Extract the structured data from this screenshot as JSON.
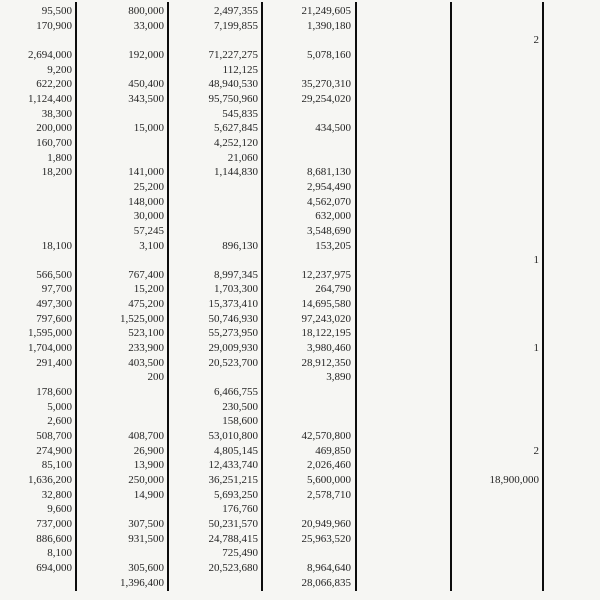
{
  "page": {
    "background_color": "#f6f6f3",
    "text_color": "#242424",
    "rule_color": "#0d0d0d"
  },
  "table": {
    "columns": [
      "column-1",
      "column-2",
      "column-3",
      "column-4",
      "column-5",
      "column-6"
    ],
    "rows": [
      [
        "95,500",
        "800,000",
        "2,497,355",
        "21,249,605",
        "",
        ""
      ],
      [
        "170,900",
        "33,000",
        "7,199,855",
        "1,390,180",
        "",
        ""
      ],
      [
        "",
        "",
        "",
        "",
        "",
        "2"
      ],
      [
        "2,694,000",
        "192,000",
        "71,227,275",
        "5,078,160",
        "",
        ""
      ],
      [
        "9,200",
        "",
        "112,125",
        "",
        "",
        ""
      ],
      [
        "622,200",
        "450,400",
        "48,940,530",
        "35,270,310",
        "",
        ""
      ],
      [
        "1,124,400",
        "343,500",
        "95,750,960",
        "29,254,020",
        "",
        ""
      ],
      [
        "38,300",
        "",
        "545,835",
        "",
        "",
        ""
      ],
      [
        "200,000",
        "15,000",
        "5,627,845",
        "434,500",
        "",
        ""
      ],
      [
        "160,700",
        "",
        "4,252,120",
        "",
        "",
        ""
      ],
      [
        "1,800",
        "",
        "21,060",
        "",
        "",
        ""
      ],
      [
        "18,200",
        "141,000",
        "1,144,830",
        "8,681,130",
        "",
        ""
      ],
      [
        "",
        "25,200",
        "",
        "2,954,490",
        "",
        ""
      ],
      [
        "",
        "148,000",
        "",
        "4,562,070",
        "",
        ""
      ],
      [
        "",
        "30,000",
        "",
        "632,000",
        "",
        ""
      ],
      [
        "",
        "57,245",
        "",
        "3,548,690",
        "",
        ""
      ],
      [
        "18,100",
        "3,100",
        "896,130",
        "153,205",
        "",
        ""
      ],
      [
        "",
        "",
        "",
        "",
        "",
        "1"
      ],
      [
        "566,500",
        "767,400",
        "8,997,345",
        "12,237,975",
        "",
        ""
      ],
      [
        "97,700",
        "15,200",
        "1,703,300",
        "264,790",
        "",
        ""
      ],
      [
        "497,300",
        "475,200",
        "15,373,410",
        "14,695,580",
        "",
        ""
      ],
      [
        "797,600",
        "1,525,000",
        "50,746,930",
        "97,243,020",
        "",
        ""
      ],
      [
        "1,595,000",
        "523,100",
        "55,273,950",
        "18,122,195",
        "",
        ""
      ],
      [
        "1,704,000",
        "233,900",
        "29,009,930",
        "3,980,460",
        "",
        "1"
      ],
      [
        "291,400",
        "403,500",
        "20,523,700",
        "28,912,350",
        "",
        ""
      ],
      [
        "",
        "200",
        "",
        "3,890",
        "",
        ""
      ],
      [
        "178,600",
        "",
        "6,466,755",
        "",
        "",
        ""
      ],
      [
        "5,000",
        "",
        "230,500",
        "",
        "",
        ""
      ],
      [
        "2,600",
        "",
        "158,600",
        "",
        "",
        ""
      ],
      [
        "508,700",
        "408,700",
        "53,010,800",
        "42,570,800",
        "",
        ""
      ],
      [
        "274,900",
        "26,900",
        "4,805,145",
        "469,850",
        "",
        "2"
      ],
      [
        "85,100",
        "13,900",
        "12,433,740",
        "2,026,460",
        "",
        ""
      ],
      [
        "1,636,200",
        "250,000",
        "36,251,215",
        "5,600,000",
        "",
        "18,900,000"
      ],
      [
        "32,800",
        "14,900",
        "5,693,250",
        "2,578,710",
        "",
        ""
      ],
      [
        "9,600",
        "",
        "176,760",
        "",
        "",
        ""
      ],
      [
        "737,000",
        "307,500",
        "50,231,570",
        "20,949,960",
        "",
        ""
      ],
      [
        "886,600",
        "931,500",
        "24,788,415",
        "25,963,520",
        "",
        ""
      ],
      [
        "8,100",
        "",
        "725,490",
        "",
        "",
        ""
      ],
      [
        "694,000",
        "305,600",
        "20,523,680",
        "8,964,640",
        "",
        ""
      ],
      [
        "",
        "1,396,400",
        "",
        "28,066,835",
        "",
        ""
      ]
    ]
  }
}
